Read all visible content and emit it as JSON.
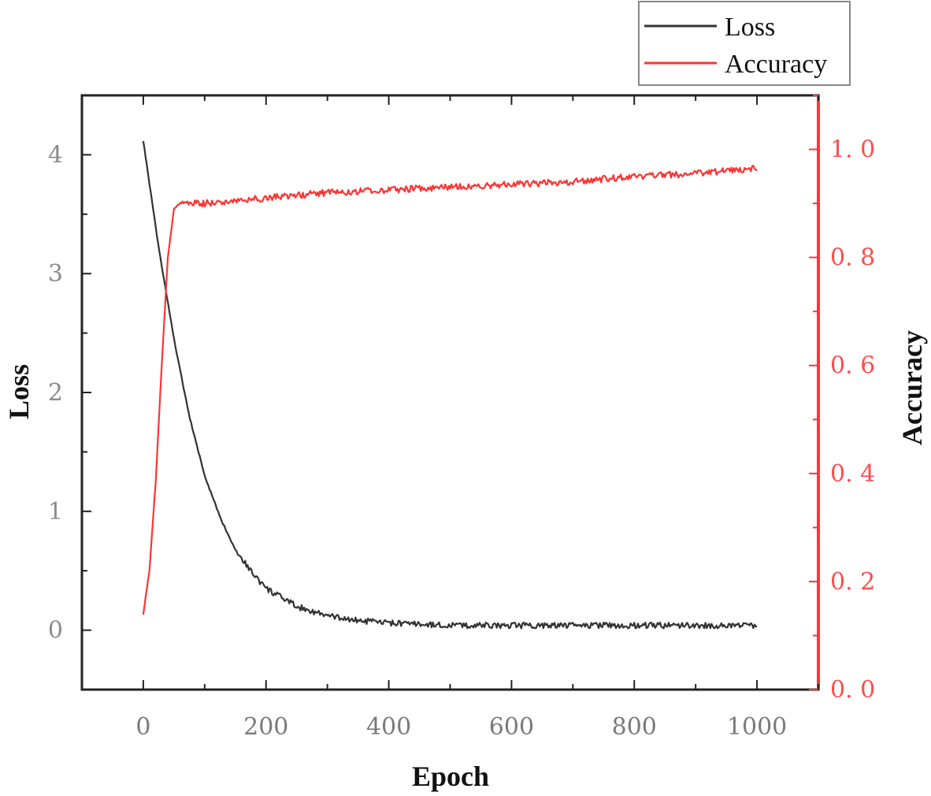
{
  "chart_data": {
    "type": "line",
    "title": "",
    "xlabel": "Epoch",
    "ylabel_left": "Loss",
    "ylabel_right": "Accuracy",
    "xlim": [
      -100,
      1100
    ],
    "ylim_left": [
      -0.5,
      4.5
    ],
    "ylim_right": [
      0.0,
      1.1
    ],
    "x_ticks": [
      0,
      200,
      400,
      600,
      800,
      1000
    ],
    "x_tick_labels": [
      "0",
      "200",
      "400",
      "600",
      "800",
      "1000"
    ],
    "y_left_ticks": [
      0,
      1,
      2,
      3,
      4
    ],
    "y_left_tick_labels": [
      "0",
      "1",
      "2",
      "3",
      "4"
    ],
    "y_right_ticks": [
      0.0,
      0.2,
      0.4,
      0.6,
      0.8,
      1.0
    ],
    "y_right_tick_labels": [
      "0. 0",
      "0. 2",
      "0. 4",
      "0. 6",
      "0. 8",
      "1. 0"
    ],
    "grid": false,
    "legend_position": "top-right",
    "series": [
      {
        "name": "Loss",
        "axis": "left",
        "color": "#333333",
        "x": [
          0,
          25,
          50,
          75,
          100,
          125,
          150,
          175,
          200,
          250,
          300,
          350,
          400,
          500,
          600,
          700,
          800,
          900,
          1000
        ],
        "values": [
          4.12,
          3.22,
          2.45,
          1.8,
          1.3,
          0.95,
          0.68,
          0.5,
          0.35,
          0.2,
          0.12,
          0.08,
          0.06,
          0.04,
          0.04,
          0.04,
          0.04,
          0.04,
          0.04
        ]
      },
      {
        "name": "Accuracy",
        "axis": "right",
        "color": "#ff3333",
        "x": [
          0,
          10,
          20,
          30,
          40,
          50,
          60,
          100,
          200,
          300,
          400,
          500,
          600,
          700,
          800,
          900,
          1000
        ],
        "values": [
          0.14,
          0.22,
          0.38,
          0.6,
          0.8,
          0.89,
          0.9,
          0.9,
          0.91,
          0.92,
          0.925,
          0.93,
          0.935,
          0.94,
          0.95,
          0.955,
          0.965
        ]
      }
    ]
  },
  "legend": {
    "items": [
      {
        "label": "Loss",
        "color": "#333333"
      },
      {
        "label": "Accuracy",
        "color": "#ff3333"
      }
    ]
  },
  "colors": {
    "left_axis": "#222222",
    "right_axis": "#ff3333"
  }
}
